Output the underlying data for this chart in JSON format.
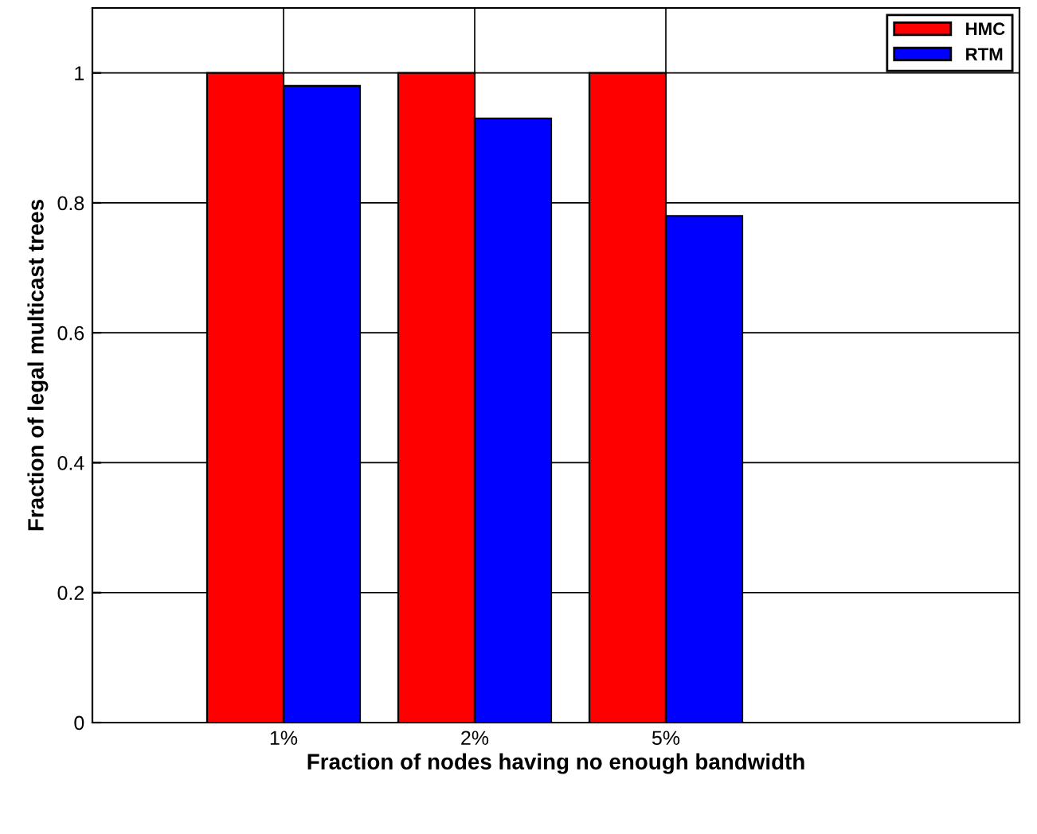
{
  "chart_data": {
    "type": "bar",
    "xlabel": "Fraction of nodes having no enough bandwidth",
    "ylabel": "Fraction of legal multicast trees",
    "categories": [
      "1%",
      "2%",
      "5%"
    ],
    "series": [
      {
        "name": "HMC",
        "color": "#ff0000",
        "values": [
          1.0,
          1.0,
          1.0
        ]
      },
      {
        "name": "RTM",
        "color": "#0000ff",
        "values": [
          0.98,
          0.93,
          0.78
        ]
      }
    ],
    "ylim": [
      0,
      1.1
    ],
    "yticks": [
      0,
      0.2,
      0.4,
      0.6,
      0.8,
      1
    ],
    "grid": true,
    "legend": "top right"
  }
}
